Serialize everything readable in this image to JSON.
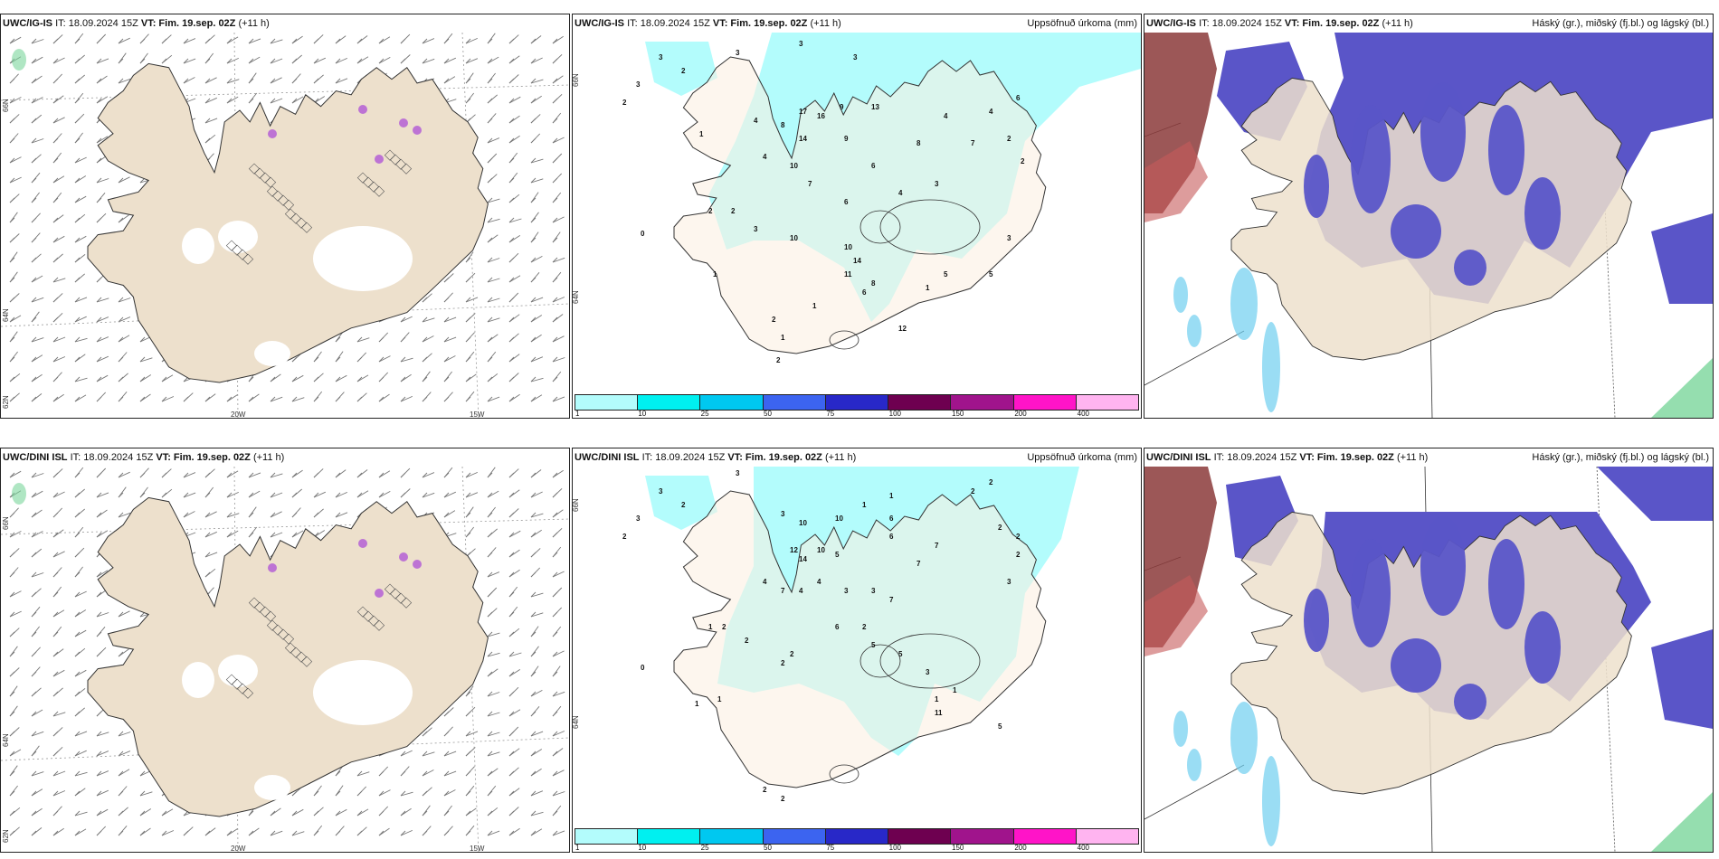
{
  "colors": {
    "land": "#ede0cc",
    "land_cream": "#fbeee0",
    "glacier": "#ffffff",
    "precip": "#b3fcfc",
    "high_cloud": "#8b3a3a",
    "mid_cloud": "#5a55c8",
    "low_cloud": "#6fcff0",
    "green": "#7ad69b"
  },
  "rows": [
    {
      "panels": [
        {
          "type": "wind",
          "model": "UWC/IG-IS",
          "it_text": "IT: 18.09.2024 15Z",
          "vt_label": "VT: Fim. 19.sep. 02Z",
          "lead": "(+11 h)",
          "right_title": "",
          "lon_labels": [
            "20W",
            "15W"
          ],
          "lat_labels": [
            "66N",
            "64N",
            "62N"
          ]
        },
        {
          "type": "precip",
          "model": "UWC/IG-IS",
          "it_text": "IT: 18.09.2024 15Z",
          "vt_label": "VT: Fim. 19.sep. 02Z",
          "lead": "(+11 h)",
          "right_title": "Uppsöfnuð úrkoma (mm)",
          "lat_labels": [
            "66N",
            "64N"
          ]
        },
        {
          "type": "cloud",
          "model": "UWC/IG-IS",
          "it_text": "IT: 18.09.2024 15Z",
          "vt_label": "VT: Fim. 19.sep. 02Z",
          "lead": "(+11 h)",
          "right_title": "Háský (gr.), miðský (fj.bl.) og lágský (bl.)"
        }
      ]
    },
    {
      "panels": [
        {
          "type": "wind",
          "model": "UWC/DINI ISL",
          "it_text": "IT: 18.09.2024 15Z",
          "vt_label": "VT: Fim. 19.sep. 02Z",
          "lead": "(+11 h)",
          "right_title": "",
          "lon_labels": [
            "20W",
            "15W"
          ],
          "lat_labels": [
            "66N",
            "64N",
            "62N"
          ]
        },
        {
          "type": "precip",
          "model": "UWC/DINI ISL",
          "it_text": "IT: 18.09.2024 15Z",
          "vt_label": "VT: Fim. 19.sep. 02Z",
          "lead": "(+11 h)",
          "right_title": "Uppsöfnuð úrkoma (mm)",
          "lat_labels": [
            "66N",
            "64N"
          ]
        },
        {
          "type": "cloud",
          "model": "UWC/DINI ISL",
          "it_text": "IT: 18.09.2024 15Z",
          "vt_label": "VT: Fim. 19.sep. 02Z",
          "lead": "(+11 h)",
          "right_title": "Háský (gr.), miðský (fj.bl.) og lágský (bl.)"
        }
      ]
    }
  ],
  "colorbar": {
    "colors": [
      "#b3fcfc",
      "#00f0f0",
      "#00c8f0",
      "#3c64f0",
      "#2828c8",
      "#6e0050",
      "#a0148c",
      "#ff14c8",
      "#ffb4f0"
    ],
    "labels": [
      "1",
      "10",
      "25",
      "50",
      "75",
      "100",
      "150",
      "200",
      "400"
    ]
  }
}
